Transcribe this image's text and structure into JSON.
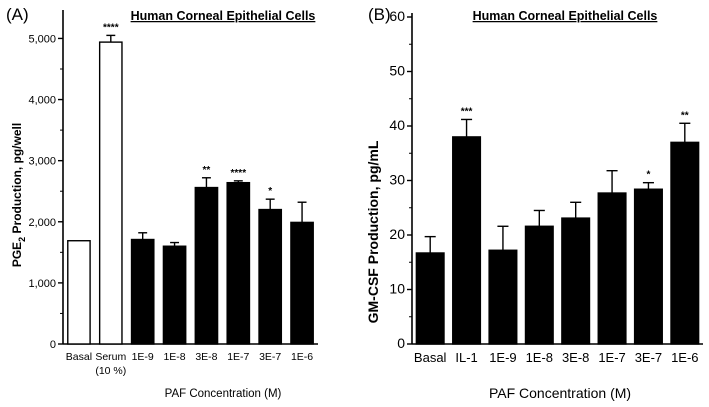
{
  "chart_data": [
    {
      "type": "bar",
      "panel_label": "(A)",
      "title": "Human Corneal Epithelial Cells",
      "ylabel_prefix": "PGE",
      "ylabel_sub": "2",
      "ylabel_suffix": " Production, pg/well",
      "xlabel": "PAF Concentration  (M)",
      "ylim": [
        0,
        5400
      ],
      "yticks": [
        0,
        1000,
        2000,
        3000,
        4000,
        5000
      ],
      "ytick_labels": [
        "0",
        "1,000",
        "2,000",
        "3,000",
        "4,000",
        "5,000"
      ],
      "categories": [
        "Basal",
        "Serum",
        "1E-9",
        "1E-8",
        "3E-8",
        "1E-7",
        "3E-7",
        "1E-6"
      ],
      "category_sublabels": [
        "",
        "(10 %)",
        "",
        "",
        "",
        "",
        "",
        ""
      ],
      "values": [
        1690,
        4940,
        1710,
        1600,
        2560,
        2640,
        2200,
        1990
      ],
      "errors": [
        0,
        110,
        110,
        60,
        160,
        30,
        170,
        330
      ],
      "fills": [
        "#ffffff",
        "#ffffff",
        "#000000",
        "#000000",
        "#000000",
        "#000000",
        "#000000",
        "#000000"
      ],
      "significance": [
        "",
        "****",
        "",
        "",
        "**",
        "****",
        "*",
        ""
      ]
    },
    {
      "type": "bar",
      "panel_label": "(B)",
      "title": "Human Corneal Epithelial Cells",
      "ylabel": "GM-CSF  Production, pg/mL",
      "xlabel": "PAF Concentration  (M)",
      "ylim": [
        0,
        60
      ],
      "yticks": [
        0,
        10,
        20,
        30,
        40,
        50,
        60
      ],
      "ytick_labels": [
        "0",
        "10",
        "20",
        "30",
        "40",
        "50",
        "60"
      ],
      "categories": [
        "Basal",
        "IL-1",
        "1E-9",
        "1E-8",
        "3E-8",
        "1E-7",
        "3E-7",
        "1E-6"
      ],
      "values": [
        16.7,
        38.0,
        17.2,
        21.6,
        23.1,
        27.7,
        28.4,
        37.0
      ],
      "errors": [
        3.0,
        3.2,
        4.4,
        2.9,
        2.9,
        4.1,
        1.2,
        3.5
      ],
      "fills": [
        "#000000",
        "#000000",
        "#000000",
        "#000000",
        "#000000",
        "#000000",
        "#000000",
        "#000000"
      ],
      "significance": [
        "",
        "***",
        "",
        "",
        "",
        "",
        "*",
        "**"
      ]
    }
  ]
}
